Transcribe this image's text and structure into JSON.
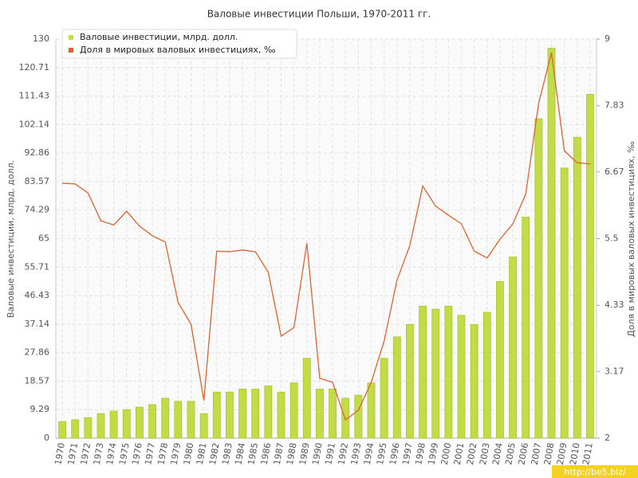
{
  "chart_data": {
    "type": "bar",
    "title": "Валовые инвестиции Польши, 1970-2011 гг.",
    "y_label": "Валовые инвестиции, млрд. долл.",
    "y2_label": "Доля в мировых валовых инвестициях, ‰",
    "categories": [
      "1970",
      "1971",
      "1972",
      "1973",
      "1974",
      "1975",
      "1976",
      "1977",
      "1978",
      "1979",
      "1980",
      "1981",
      "1982",
      "1983",
      "1984",
      "1985",
      "1986",
      "1987",
      "1988",
      "1989",
      "1990",
      "1991",
      "1992",
      "1993",
      "1994",
      "1995",
      "1996",
      "1997",
      "1998",
      "1999",
      "2000",
      "2001",
      "2002",
      "2003",
      "2004",
      "2005",
      "2006",
      "2007",
      "2008",
      "2009",
      "2010",
      "2011"
    ],
    "series": [
      {
        "name": "Валовые инвестиции, млрд. долл.",
        "type": "bar",
        "color": "#c2dc45",
        "values": [
          5.4,
          6,
          6.7,
          8,
          8.8,
          9.3,
          10.1,
          10.9,
          13,
          12,
          12,
          8,
          15,
          15,
          16,
          16,
          17,
          15,
          18,
          26,
          16,
          16,
          13,
          14,
          18,
          26,
          33,
          37,
          43,
          42,
          43,
          40,
          37,
          41,
          51,
          59,
          72,
          104,
          127,
          88,
          98,
          112
        ]
      },
      {
        "name": "Доля в мировых валовых инвестициях, ‰",
        "type": "line",
        "axis": "y2",
        "color": "#e0622f",
        "values": [
          6.47,
          6.46,
          6.3,
          5.81,
          5.74,
          5.98,
          5.72,
          5.55,
          5.44,
          4.38,
          4.0,
          2.66,
          5.28,
          5.27,
          5.3,
          5.27,
          4.91,
          3.79,
          3.94,
          5.42,
          3.05,
          2.98,
          2.32,
          2.49,
          2.98,
          3.7,
          4.77,
          5.38,
          6.42,
          6.07,
          5.91,
          5.76,
          5.28,
          5.16,
          5.49,
          5.76,
          6.28,
          7.87,
          8.76,
          7.04,
          6.83,
          6.81
        ]
      }
    ],
    "ylim": [
      0,
      130
    ],
    "yticks": [
      0,
      9.29,
      18.57,
      27.86,
      37.14,
      46.43,
      55.71,
      65,
      74.29,
      83.57,
      92.86,
      102.14,
      111.43,
      120.71,
      130
    ],
    "y2lim": [
      2,
      9
    ],
    "y2ticks": [
      2,
      3.17,
      4.33,
      5.5,
      6.67,
      7.83,
      9
    ],
    "grid": true,
    "legend": "top-left"
  },
  "watermark": "http://be5.biz/"
}
